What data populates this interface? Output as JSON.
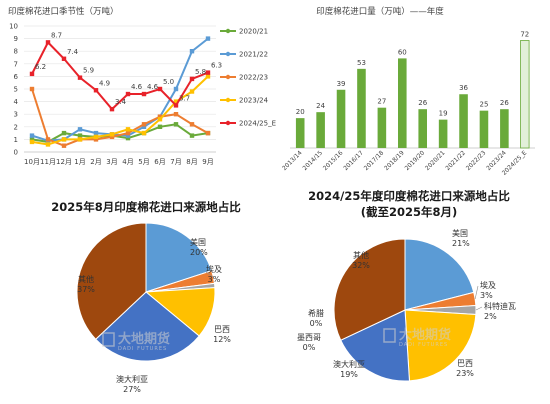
{
  "watermark": {
    "text": "大地期货",
    "sub": "DADI FUTURES"
  },
  "chart_data": [
    {
      "type": "line",
      "title": "印度棉花进口季节性（万吨）",
      "categories": [
        "10月",
        "11月",
        "12月",
        "1月",
        "2月",
        "3月",
        "4月",
        "5月",
        "6月",
        "7月",
        "8月",
        "9月"
      ],
      "ylim": [
        0,
        10
      ],
      "yticks": [
        "0",
        "1",
        "2",
        "3",
        "4",
        "5",
        "6",
        "7",
        "8",
        "9",
        "10"
      ],
      "series": [
        {
          "name": "2020/21",
          "color": "#6aaa3a",
          "values": [
            1.0,
            0.8,
            1.5,
            1.3,
            1.2,
            1.3,
            1.1,
            1.5,
            2.0,
            2.2,
            1.3,
            1.5
          ],
          "labels": []
        },
        {
          "name": "2021/22",
          "color": "#5b9bd5",
          "values": [
            1.3,
            0.9,
            1.0,
            1.8,
            1.5,
            1.4,
            1.3,
            2.0,
            2.8,
            5.0,
            8.0,
            9.0
          ],
          "labels": []
        },
        {
          "name": "2022/23",
          "color": "#ed7d31",
          "values": [
            5.0,
            1.0,
            0.5,
            1.0,
            1.0,
            1.2,
            1.5,
            2.2,
            2.8,
            3.0,
            2.2,
            1.5
          ],
          "labels": []
        },
        {
          "name": "2023/24",
          "color": "#ffc000",
          "values": [
            0.8,
            0.6,
            1.0,
            1.0,
            1.2,
            1.4,
            1.8,
            1.5,
            2.6,
            4.0,
            4.8,
            6.0
          ],
          "labels": []
        },
        {
          "name": "2024/25_E",
          "color": "#e8222a",
          "values": [
            6.2,
            8.7,
            7.4,
            5.9,
            4.9,
            3.4,
            4.6,
            4.6,
            5.0,
            3.7,
            5.8,
            6.3
          ],
          "labels": [
            "6.2",
            "8.7",
            "7.4",
            "5.9",
            "4.9",
            "3.4",
            "4.6",
            "4.6",
            "5.0",
            "3.7",
            "5.8",
            "6.3"
          ]
        }
      ]
    },
    {
      "type": "bar",
      "title": "印度棉花进口量（万吨）——年度",
      "categories": [
        "2013/14",
        "2014/15",
        "2015/16",
        "2016/17",
        "2017/18",
        "2018/19",
        "2019/20",
        "2020/21",
        "2021/22",
        "2022/23",
        "2023/24",
        "2024/25_E"
      ],
      "values": [
        20,
        24,
        39,
        53,
        27,
        60,
        26,
        19,
        36,
        25,
        26,
        72
      ],
      "labels": [
        "20",
        "24",
        "39",
        "53",
        "27",
        "60",
        "26",
        "19",
        "36",
        "25",
        "26",
        "72"
      ],
      "ylim": [
        0,
        75
      ],
      "color": "#6aaa3a",
      "estimate_color": "#e2f0d9"
    },
    {
      "type": "pie",
      "title": "2025年8月印度棉花进口来源地占比",
      "slices": [
        {
          "name": "美国",
          "pct": 20,
          "label": "20%",
          "color": "#5b9bd5"
        },
        {
          "name": "埃及",
          "pct": 3,
          "label": "3%",
          "color": "#ed7d31"
        },
        {
          "name": "其他小项",
          "pct": 1,
          "label": "",
          "color": "#a5a5a5"
        },
        {
          "name": "巴西",
          "pct": 12,
          "label": "12%",
          "color": "#ffc000"
        },
        {
          "name": "澳大利亚",
          "pct": 27,
          "label": "27%",
          "color": "#4472c4"
        },
        {
          "name": "其他",
          "pct": 37,
          "label": "37%",
          "color": "#9e480e"
        }
      ]
    },
    {
      "type": "pie",
      "title": "2024/25年度印度棉花进口来源地占比",
      "subtitle": "(截至2025年8月)",
      "slices": [
        {
          "name": "美国",
          "pct": 21,
          "label": "21%",
          "color": "#5b9bd5"
        },
        {
          "name": "埃及",
          "pct": 3,
          "label": "3%",
          "color": "#ed7d31"
        },
        {
          "name": "科特迪瓦",
          "pct": 2,
          "label": "2%",
          "color": "#a5a5a5"
        },
        {
          "name": "巴西",
          "pct": 23,
          "label": "23%",
          "color": "#ffc000"
        },
        {
          "name": "澳大利亚",
          "pct": 19,
          "label": "19%",
          "color": "#4472c4"
        },
        {
          "name": "墨西哥",
          "pct": 0,
          "label": "0%",
          "color": "#70ad47"
        },
        {
          "name": "希腊",
          "pct": 0,
          "label": "0%",
          "color": "#264478"
        },
        {
          "name": "其他",
          "pct": 32,
          "label": "32%",
          "color": "#9e480e"
        }
      ]
    }
  ]
}
